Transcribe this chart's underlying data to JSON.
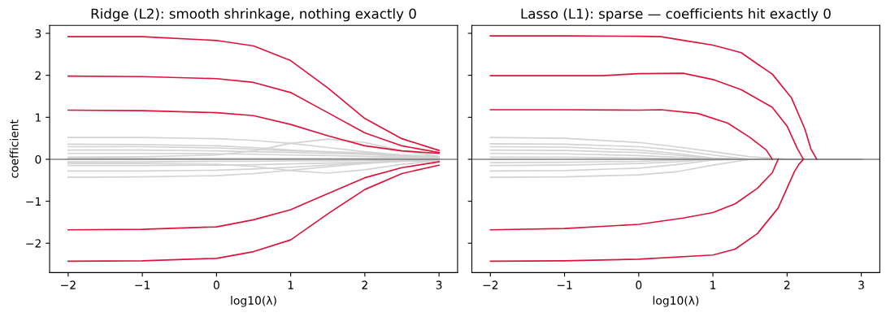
{
  "chart_data": [
    {
      "type": "line",
      "title": "Ridge (L2): smooth shrinkage, nothing exactly 0",
      "xlabel": "log10(λ)",
      "ylabel": "coefficient",
      "xlim": [
        -2.25,
        3.25
      ],
      "ylim": [
        -2.7,
        3.19
      ],
      "xticks": [
        -2,
        -1,
        0,
        1,
        2,
        3
      ],
      "yticks": [
        -2,
        -1,
        0,
        1,
        2,
        3
      ],
      "grid": false,
      "marker": "none",
      "line_style": "solid",
      "ref_lines": [
        {
          "axis": "y",
          "value": 0,
          "label": null,
          "color": "#444444"
        }
      ],
      "x": [
        -2,
        -1,
        0,
        0.5,
        1,
        1.5,
        2,
        2.5,
        3
      ],
      "series": [
        {
          "color": "#d3d3d3",
          "values": [
            0.52,
            0.52,
            0.49,
            0.45,
            0.38,
            0.28,
            0.18,
            0.1,
            0.06
          ]
        },
        {
          "color": "#d3d3d3",
          "values": [
            0.36,
            0.35,
            0.32,
            0.28,
            0.22,
            0.17,
            0.12,
            0.08,
            0.05
          ]
        },
        {
          "color": "#d3d3d3",
          "values": [
            0.3,
            0.3,
            0.27,
            0.24,
            0.2,
            0.18,
            0.15,
            0.1,
            0.06
          ]
        },
        {
          "color": "#d3d3d3",
          "values": [
            0.22,
            0.22,
            0.2,
            0.18,
            0.16,
            0.14,
            0.12,
            0.08,
            0.05
          ]
        },
        {
          "color": "#d3d3d3",
          "values": [
            0.14,
            0.14,
            0.13,
            0.12,
            0.1,
            0.09,
            0.07,
            0.05,
            0.03
          ]
        },
        {
          "color": "#d3d3d3",
          "values": [
            0.05,
            0.06,
            0.1,
            0.2,
            0.38,
            0.48,
            0.4,
            0.2,
            0.07
          ]
        },
        {
          "color": "#d3d3d3",
          "values": [
            0.02,
            0.02,
            0.02,
            0.02,
            0.02,
            0.02,
            0.02,
            0.02,
            0.01
          ]
        },
        {
          "color": "#d3d3d3",
          "values": [
            -0.06,
            -0.06,
            -0.05,
            -0.05,
            -0.04,
            -0.04,
            -0.03,
            -0.02,
            -0.01
          ]
        },
        {
          "color": "#d3d3d3",
          "values": [
            -0.15,
            -0.15,
            -0.14,
            -0.13,
            -0.11,
            -0.09,
            -0.07,
            -0.04,
            -0.02
          ]
        },
        {
          "color": "#d3d3d3",
          "values": [
            -0.1,
            -0.1,
            -0.12,
            -0.17,
            -0.27,
            -0.33,
            -0.25,
            -0.12,
            -0.03
          ]
        },
        {
          "color": "#d3d3d3",
          "values": [
            -0.28,
            -0.28,
            -0.26,
            -0.23,
            -0.19,
            -0.14,
            -0.09,
            -0.05,
            -0.02
          ]
        },
        {
          "color": "#d3d3d3",
          "values": [
            -0.43,
            -0.42,
            -0.39,
            -0.34,
            -0.26,
            -0.18,
            -0.1,
            -0.05,
            -0.02
          ]
        },
        {
          "color": "#dc143c",
          "values": [
            2.92,
            2.92,
            2.83,
            2.7,
            2.35,
            1.7,
            0.97,
            0.49,
            0.21
          ]
        },
        {
          "color": "#dc143c",
          "values": [
            1.98,
            1.97,
            1.92,
            1.83,
            1.59,
            1.11,
            0.63,
            0.32,
            0.16
          ]
        },
        {
          "color": "#dc143c",
          "values": [
            1.17,
            1.16,
            1.11,
            1.04,
            0.83,
            0.56,
            0.32,
            0.2,
            0.14
          ]
        },
        {
          "color": "#dc143c",
          "values": [
            -1.68,
            -1.67,
            -1.61,
            -1.44,
            -1.2,
            -0.82,
            -0.44,
            -0.2,
            -0.06
          ]
        },
        {
          "color": "#dc143c",
          "values": [
            -2.43,
            -2.42,
            -2.36,
            -2.2,
            -1.92,
            -1.3,
            -0.72,
            -0.34,
            -0.14
          ]
        }
      ]
    },
    {
      "type": "line",
      "title": "Lasso (L1): sparse — coefficients hit exactly 0",
      "xlabel": "log10(λ)",
      "xlim": [
        -2.25,
        3.25
      ],
      "ylim": [
        -2.7,
        3.19
      ],
      "xticks": [
        -2,
        -1,
        0,
        1,
        2,
        3
      ],
      "yticks": [
        -2,
        -1,
        0,
        1,
        2,
        3
      ],
      "tick_labels": "x",
      "grid": false,
      "marker": "none",
      "line_style": "solid",
      "ref_lines": [
        {
          "axis": "y",
          "value": 0,
          "label": null,
          "color": "#444444"
        }
      ],
      "x": [
        -2,
        -1,
        0,
        0.5,
        1,
        1.5,
        2,
        3
      ],
      "series": [
        {
          "color": "#d3d3d3",
          "values": [
            0.52,
            0.5,
            0.4,
            0.3,
            0.18,
            0.06,
            0,
            0
          ]
        },
        {
          "color": "#d3d3d3",
          "values": [
            0.37,
            0.36,
            0.3,
            0.22,
            0.1,
            0,
            0,
            0
          ]
        },
        {
          "color": "#d3d3d3",
          "values": [
            0.3,
            0.29,
            0.22,
            0.14,
            0.03,
            0,
            0,
            0
          ]
        },
        {
          "color": "#d3d3d3",
          "values": [
            0.22,
            0.21,
            0.16,
            0.1,
            0.02,
            0,
            0,
            0
          ]
        },
        {
          "color": "#d3d3d3",
          "values": [
            0.14,
            0.13,
            0.09,
            0.05,
            0,
            0,
            0,
            0
          ]
        },
        {
          "color": "#d3d3d3",
          "values": [
            0.05,
            0.05,
            0.03,
            0.01,
            0,
            0,
            0,
            0
          ]
        },
        {
          "color": "#d3d3d3",
          "values": [
            -0.08,
            -0.07,
            -0.05,
            -0.02,
            0,
            0,
            0,
            0
          ]
        },
        {
          "color": "#d3d3d3",
          "values": [
            -0.15,
            -0.14,
            -0.1,
            -0.06,
            0,
            0,
            0,
            0
          ]
        },
        {
          "color": "#d3d3d3",
          "values": [
            -0.28,
            -0.27,
            -0.21,
            -0.13,
            -0.02,
            0,
            0,
            0
          ]
        },
        {
          "color": "#d3d3d3",
          "values": [
            -0.43,
            -0.42,
            -0.37,
            -0.3,
            -0.14,
            0,
            0,
            0
          ]
        },
        {
          "color": "#dc143c",
          "x": [
            -2,
            -1,
            0,
            0.3,
            0.65,
            1.0,
            1.38,
            1.6,
            1.8,
            2.06,
            2.24,
            2.32,
            2.4
          ],
          "values": [
            2.94,
            2.94,
            2.93,
            2.92,
            2.82,
            2.72,
            2.54,
            2.27,
            2.03,
            1.46,
            0.72,
            0.25,
            0
          ]
        },
        {
          "color": "#dc143c",
          "x": [
            -2,
            -1,
            -0.5,
            0,
            0.6,
            1.0,
            1.38,
            1.8,
            2.0,
            2.14,
            2.22
          ],
          "values": [
            1.99,
            1.99,
            1.99,
            2.04,
            2.05,
            1.9,
            1.66,
            1.24,
            0.79,
            0.25,
            0
          ]
        },
        {
          "color": "#dc143c",
          "x": [
            -2,
            -1,
            0,
            0.3,
            0.8,
            1.2,
            1.5,
            1.72,
            1.8
          ],
          "values": [
            1.18,
            1.18,
            1.17,
            1.18,
            1.09,
            0.86,
            0.52,
            0.22,
            0
          ]
        },
        {
          "color": "#dc143c",
          "x": [
            -2,
            -1,
            0,
            0.6,
            1.0,
            1.3,
            1.6,
            1.8,
            1.88
          ],
          "values": [
            -1.68,
            -1.65,
            -1.55,
            -1.4,
            -1.27,
            -1.06,
            -0.69,
            -0.32,
            0
          ]
        },
        {
          "color": "#dc143c",
          "x": [
            -2,
            -1,
            0,
            1.0,
            1.3,
            1.6,
            1.88,
            2.1,
            2.16,
            2.22
          ],
          "values": [
            -2.43,
            -2.42,
            -2.38,
            -2.28,
            -2.14,
            -1.77,
            -1.16,
            -0.29,
            -0.12,
            0
          ]
        }
      ]
    }
  ]
}
